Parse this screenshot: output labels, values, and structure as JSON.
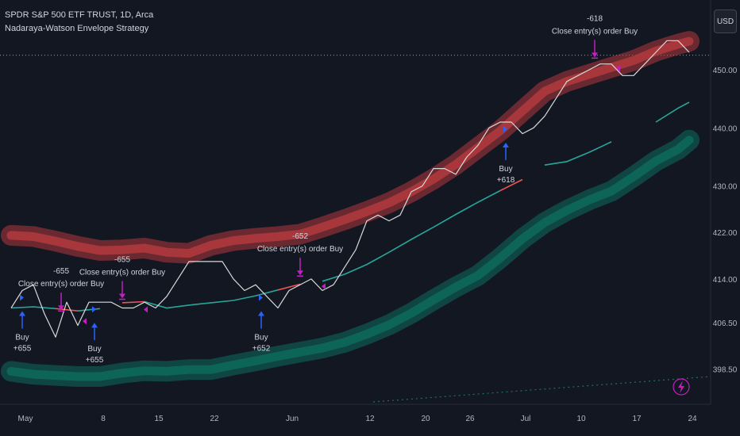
{
  "header": {
    "symbol": "SPDR S&P 500 ETF TRUST, 1D, Arca",
    "indicator": "Nadaraya-Watson Envelope Strategy"
  },
  "currency_button": "USD",
  "colors": {
    "background": "#131722",
    "upper_band": "#b2393d",
    "lower_band": "#0d6b5c",
    "price": "#d9d9d9",
    "mid_up": "#26a69a",
    "mid_down": "#ef5350",
    "buy_arrow": "#2962ff",
    "close_arrow": "#c21fc2"
  },
  "chart_data": {
    "type": "line",
    "title": "",
    "xlabel": "",
    "ylabel": "",
    "ylim": [
      394.8,
      461.5
    ],
    "grid": false,
    "x_ticks": [
      {
        "label": "May",
        "x": 2.0
      },
      {
        "label": "8",
        "x": 9.0
      },
      {
        "label": "15",
        "x": 14.0
      },
      {
        "label": "22",
        "x": 19.0
      },
      {
        "label": "Jun",
        "x": 26.0
      },
      {
        "label": "12",
        "x": 33.0
      },
      {
        "label": "20",
        "x": 38.0
      },
      {
        "label": "26",
        "x": 42.0
      },
      {
        "label": "Jul",
        "x": 47.0
      },
      {
        "label": "10",
        "x": 52.0
      },
      {
        "label": "17",
        "x": 57.0
      },
      {
        "label": "24",
        "x": 62.0
      }
    ],
    "y_ticks": [
      "398.50",
      "406.50",
      "414.00",
      "422.00",
      "430.00",
      "440.00",
      "450.00"
    ],
    "last_price_line": 452.5,
    "series": [
      {
        "role": "price",
        "x": [
          0,
          1,
          2,
          3,
          4,
          5,
          6,
          7,
          8,
          9,
          10,
          11,
          12,
          13,
          14,
          15,
          16,
          17,
          18,
          19,
          20,
          21,
          22,
          23,
          24,
          25,
          26,
          27,
          28,
          29,
          30,
          31,
          32,
          33,
          34,
          35,
          36,
          37,
          38,
          39,
          40,
          41,
          42,
          43,
          44,
          45,
          46,
          47,
          48,
          49,
          50,
          51,
          52,
          53,
          54,
          55,
          56,
          57,
          58,
          59,
          60,
          61
        ],
        "y": [
          409,
          412,
          413,
          408,
          404,
          410,
          406,
          410,
          410,
          410,
          409,
          409,
          410,
          409,
          411,
          414,
          417,
          417,
          417,
          417,
          414,
          412,
          413,
          411,
          409,
          412,
          413,
          414,
          412,
          413,
          416,
          419,
          424,
          425,
          424,
          425,
          429,
          430,
          433,
          433,
          432,
          435,
          437,
          440,
          441,
          441,
          439,
          440,
          442,
          445,
          448,
          449,
          450,
          451,
          451,
          449,
          449,
          451,
          453,
          455,
          455,
          453
        ]
      },
      {
        "role": "upper-band",
        "x": [
          0,
          2,
          4,
          6,
          8,
          10,
          12,
          14,
          16,
          18,
          20,
          22,
          24,
          26,
          28,
          30,
          32,
          34,
          36,
          38,
          40,
          42,
          44,
          46,
          48,
          50,
          52,
          54,
          56,
          58,
          60,
          61
        ],
        "y": [
          421.5,
          421.3,
          420.5,
          419.6,
          418.9,
          419.0,
          419.3,
          418.6,
          418.4,
          419.8,
          420.6,
          421.0,
          421.3,
          421.7,
          422.9,
          424.2,
          425.6,
          427.1,
          429.0,
          431.2,
          433.7,
          436.6,
          439.5,
          442.9,
          446.3,
          448.0,
          449.2,
          450.4,
          451.6,
          453.2,
          454.4,
          454.9
        ]
      },
      {
        "role": "lower-band",
        "x": [
          0,
          2,
          4,
          6,
          8,
          10,
          12,
          14,
          16,
          18,
          20,
          22,
          24,
          26,
          28,
          30,
          32,
          34,
          36,
          38,
          40,
          42,
          44,
          46,
          48,
          50,
          52,
          54,
          56,
          58,
          60,
          61
        ],
        "y": [
          398.1,
          397.6,
          397.4,
          397.2,
          397.2,
          397.8,
          398.2,
          398.1,
          398.4,
          398.4,
          399.2,
          399.9,
          400.7,
          401.4,
          402.1,
          403.1,
          404.5,
          406.1,
          408.1,
          410.4,
          412.6,
          414.6,
          417.6,
          420.9,
          423.7,
          425.8,
          427.6,
          429.1,
          431.6,
          434.3,
          436.3,
          437.9
        ]
      },
      {
        "role": "midline",
        "x": [
          0,
          2,
          4,
          6,
          8,
          10,
          12,
          14,
          16,
          18,
          20,
          22,
          24,
          26,
          28,
          30,
          32,
          34,
          36,
          38,
          40,
          42,
          44,
          46,
          48,
          50,
          52,
          54,
          56,
          58,
          60,
          61
        ],
        "y": [
          409.0,
          409.2,
          408.9,
          408.5,
          408.9,
          409.9,
          410.1,
          409.0,
          409.5,
          409.9,
          410.3,
          411.1,
          412.1,
          413.1,
          413.6,
          414.8,
          416.5,
          418.6,
          420.8,
          422.9,
          425.1,
          427.2,
          429.2,
          431.1,
          433.6,
          434.2,
          435.8,
          437.6,
          439.7,
          441.0,
          443.4,
          444.4
        ],
        "segments": [
          {
            "from": 0,
            "to": 4,
            "direction": "up"
          },
          {
            "from": 4,
            "to": 6,
            "direction": "down"
          },
          {
            "from": 6,
            "to": 9,
            "direction": "up"
          },
          {
            "from": 9,
            "to": 12,
            "direction": "down"
          },
          {
            "from": 12,
            "to": 24,
            "direction": "up"
          },
          {
            "from": 24,
            "to": 27,
            "direction": "down"
          },
          {
            "from": 27,
            "to": 44,
            "direction": "up"
          },
          {
            "from": 44,
            "to": 47,
            "direction": "down"
          },
          {
            "from": 47,
            "to": 55,
            "direction": "up"
          },
          {
            "from": 55,
            "to": 57,
            "direction": "down"
          },
          {
            "from": 57,
            "to": 61,
            "direction": "up"
          }
        ]
      }
    ],
    "trades": [
      {
        "type": "buy",
        "x": 1,
        "label": "Buy",
        "amount": "+655"
      },
      {
        "type": "buy",
        "x": 7.5,
        "label": "Buy",
        "amount": "+655"
      },
      {
        "type": "buy",
        "x": 22.5,
        "label": "Buy",
        "amount": "+652"
      },
      {
        "type": "buy",
        "x": 44.5,
        "label": "Buy",
        "amount": "+618"
      },
      {
        "type": "close",
        "x": 4.5,
        "label": "Close entry(s) order Buy",
        "amount": "-655"
      },
      {
        "type": "close",
        "x": 10,
        "label": "Close entry(s) order Buy",
        "amount": "-655"
      },
      {
        "type": "close",
        "x": 26,
        "label": "Close entry(s) order Buy",
        "amount": "-652"
      },
      {
        "type": "close",
        "x": 52.5,
        "label": "Close entry(s) order Buy",
        "amount": "-618"
      }
    ]
  }
}
